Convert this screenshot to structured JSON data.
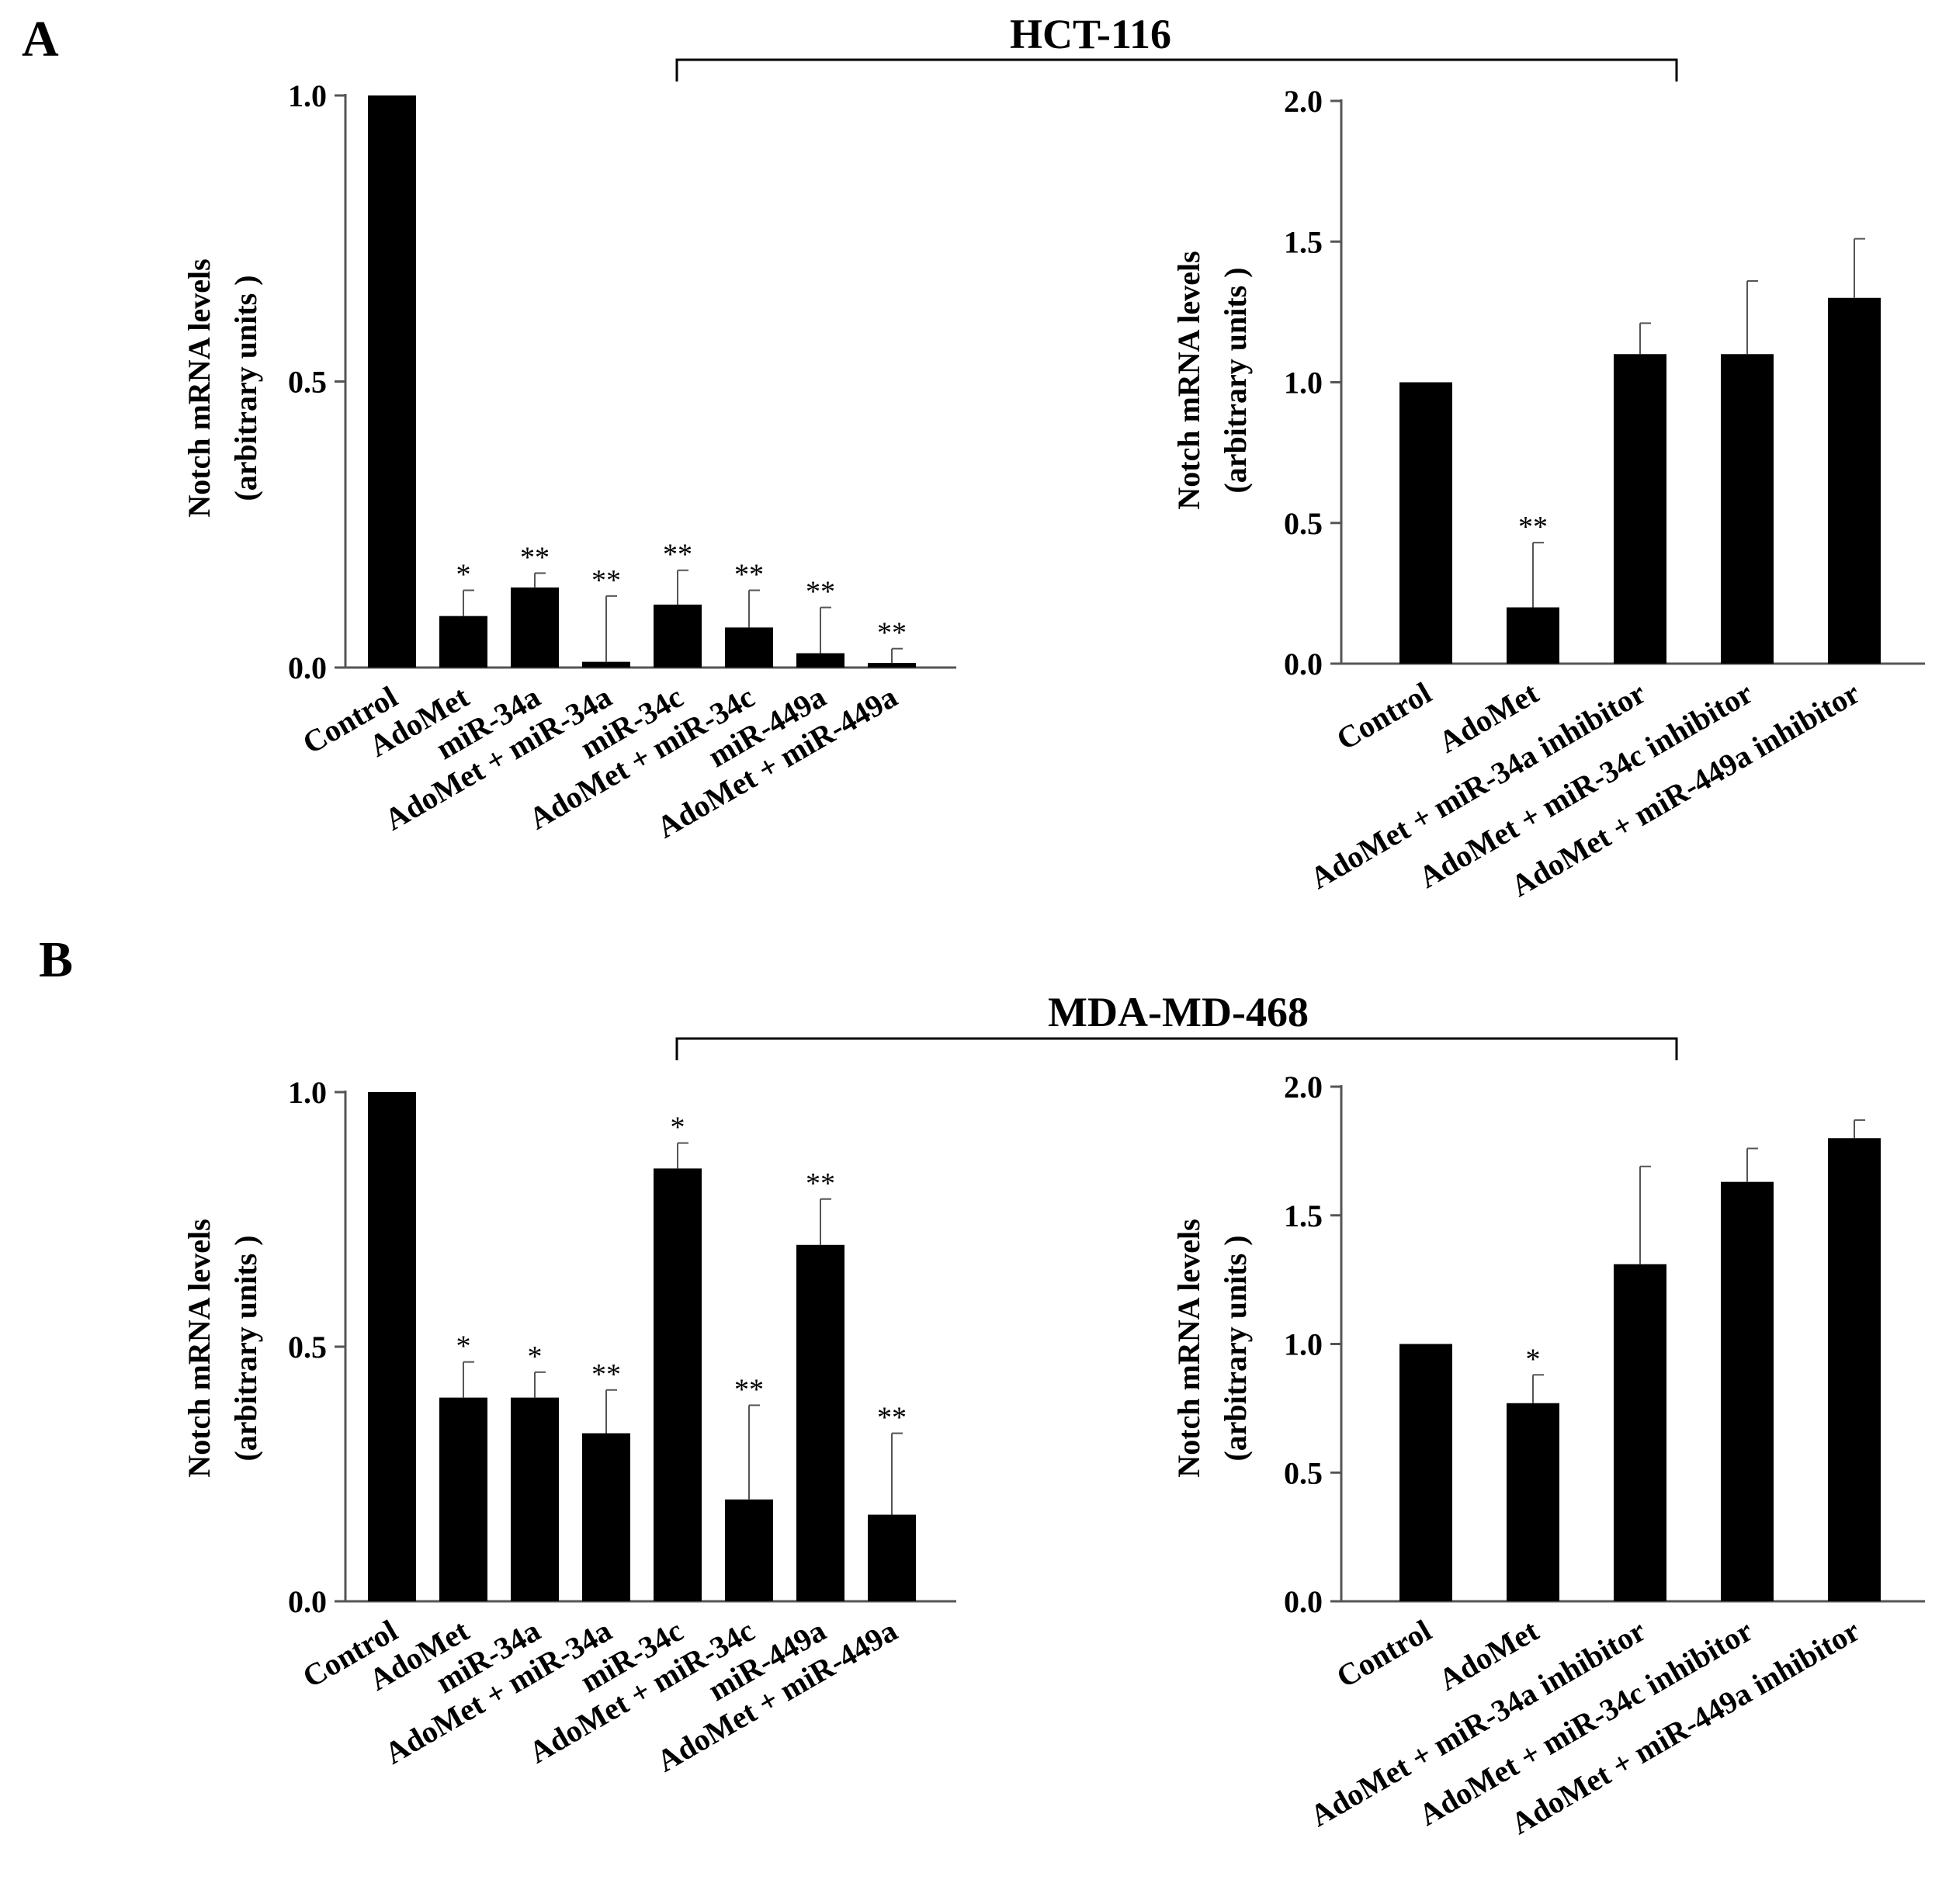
{
  "panels": [
    {
      "letter": "A",
      "cell_line": "HCT-116"
    },
    {
      "letter": "B",
      "cell_line": "MDA-MD-468"
    }
  ],
  "chart_data": [
    {
      "type": "bar",
      "panel": "A",
      "cell_line": "HCT-116",
      "title": "",
      "ylabel_line1": "Notch mRNA levels",
      "ylabel_line2": "(arbitrary units )",
      "ylim": [
        0,
        1.0
      ],
      "yticks": [
        "0.0",
        "0.5",
        "1.0"
      ],
      "categories": [
        "Control",
        "AdoMet",
        "miR-34a",
        "AdoMet + miR-34a",
        "miR-34c",
        "AdoMet + miR-34c",
        "miR-449a",
        "AdoMet + miR-449a"
      ],
      "values": [
        1.0,
        0.09,
        0.14,
        0.01,
        0.11,
        0.07,
        0.025,
        0.008
      ],
      "errors": [
        0,
        0.045,
        0.025,
        0.115,
        0.06,
        0.065,
        0.08,
        0.025
      ],
      "significance": [
        "",
        "*",
        "**",
        "**",
        "**",
        "**",
        "**",
        "**"
      ]
    },
    {
      "type": "bar",
      "panel": "A",
      "cell_line": "HCT-116",
      "title": "",
      "ylabel_line1": "Notch mRNA levels",
      "ylabel_line2": "(arbitrary units )",
      "ylim": [
        0,
        2.0
      ],
      "yticks": [
        "0.0",
        "0.5",
        "1.0",
        "1.5",
        "2.0"
      ],
      "categories": [
        "Control",
        "AdoMet",
        "AdoMet + miR-34a inhibitor",
        "AdoMet + miR-34c inhibitor",
        "AdoMet + miR-449a inhibitor"
      ],
      "values": [
        1.0,
        0.2,
        1.1,
        1.1,
        1.3
      ],
      "errors": [
        0,
        0.23,
        0.11,
        0.26,
        0.21
      ],
      "significance": [
        "",
        "**",
        "",
        "",
        ""
      ]
    },
    {
      "type": "bar",
      "panel": "B",
      "cell_line": "MDA-MD-468",
      "title": "",
      "ylabel_line1": "Notch mRNA levels",
      "ylabel_line2": "(arbitrary units )",
      "ylim": [
        0,
        1.0
      ],
      "yticks": [
        "0.0",
        "0.5",
        "1.0"
      ],
      "categories": [
        "Control",
        "AdoMet",
        "miR-34a",
        "AdoMet + miR-34a",
        "miR-34c",
        "AdoMet + miR-34c",
        "miR-449a",
        "AdoMet + miR-449a"
      ],
      "values": [
        1.0,
        0.4,
        0.4,
        0.33,
        0.85,
        0.2,
        0.7,
        0.17
      ],
      "errors": [
        0,
        0.07,
        0.05,
        0.085,
        0.05,
        0.185,
        0.09,
        0.16
      ],
      "significance": [
        "",
        "*",
        "*",
        "**",
        "*",
        "**",
        "**",
        "**"
      ]
    },
    {
      "type": "bar",
      "panel": "B",
      "cell_line": "MDA-MD-468",
      "title": "",
      "ylabel_line1": "Notch mRNA levels",
      "ylabel_line2": "(arbitrary units )",
      "ylim": [
        0,
        2.0
      ],
      "yticks": [
        "0.0",
        "0.5",
        "1.0",
        "1.5",
        "2.0"
      ],
      "categories": [
        "Control",
        "AdoMet",
        "AdoMet + miR-34a inhibitor",
        "AdoMet + miR-34c inhibitor",
        "AdoMet + miR-449a inhibitor"
      ],
      "values": [
        1.0,
        0.77,
        1.31,
        1.63,
        1.8
      ],
      "errors": [
        0,
        0.11,
        0.38,
        0.13,
        0.07
      ],
      "significance": [
        "",
        "*",
        "",
        "",
        ""
      ]
    }
  ]
}
